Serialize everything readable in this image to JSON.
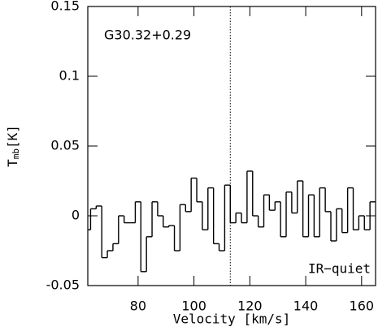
{
  "chart_data": {
    "type": "step",
    "xlabel": "Velocity [km/s]",
    "ylabel": {
      "main": "T",
      "sub": "mb",
      "unit": "[K]"
    },
    "annotations": [
      "G30.32+0.29",
      "IR−quiet"
    ],
    "vline": 113,
    "color": "#000000",
    "xlim": [
      62,
      165
    ],
    "xticks": [
      80,
      100,
      120,
      140,
      160
    ],
    "ylim": [
      -0.05,
      0.15
    ],
    "yticks": [
      -0.05,
      0,
      0.05,
      0.1,
      0.15
    ],
    "x": [
      62,
      64,
      66,
      68,
      70,
      72,
      74,
      76,
      78,
      80,
      82,
      84,
      86,
      88,
      90,
      92,
      94,
      96,
      98,
      100,
      102,
      104,
      106,
      108,
      110,
      112,
      114,
      116,
      118,
      120,
      122,
      124,
      126,
      128,
      130,
      132,
      134,
      136,
      138,
      140,
      142,
      144,
      146,
      148,
      150,
      152,
      154,
      156,
      158,
      160,
      162,
      164
    ],
    "values": [
      -0.01,
      0.005,
      0.007,
      -0.03,
      -0.025,
      -0.02,
      0.0,
      -0.005,
      -0.005,
      0.01,
      -0.04,
      -0.015,
      0.01,
      0.0,
      -0.008,
      -0.007,
      -0.025,
      0.008,
      0.003,
      0.027,
      0.01,
      -0.01,
      0.02,
      -0.02,
      -0.025,
      0.022,
      -0.005,
      0.002,
      -0.005,
      0.032,
      0.0,
      -0.008,
      0.015,
      0.004,
      0.01,
      -0.015,
      0.017,
      0.002,
      0.025,
      -0.015,
      0.015,
      -0.015,
      0.02,
      0.003,
      -0.018,
      0.005,
      -0.012,
      0.02,
      -0.01,
      0.0,
      -0.01,
      0.01
    ]
  }
}
